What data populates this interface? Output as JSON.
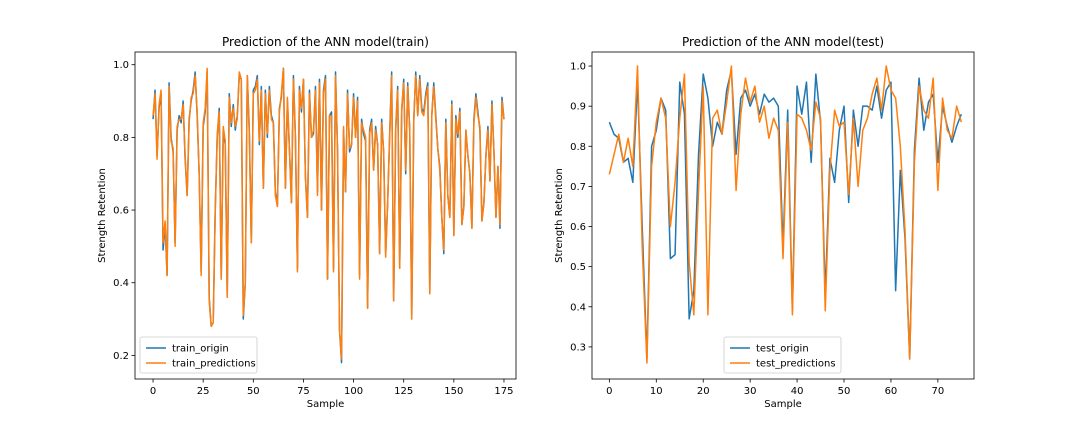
{
  "chart_data": [
    {
      "type": "line",
      "title": "Prediction of the ANN model(train)",
      "xlabel": "Sample",
      "ylabel": "Strength Retention",
      "xlim": [
        -9,
        181
      ],
      "ylim": [
        0.135,
        1.035
      ],
      "xticks": [
        0,
        25,
        50,
        75,
        100,
        125,
        150,
        175
      ],
      "xtick_labels": [
        "0",
        "25",
        "50",
        "75",
        "100",
        "125",
        "150",
        "175"
      ],
      "yticks": [
        0.2,
        0.4,
        0.6,
        0.8,
        1.0
      ],
      "ytick_labels": [
        "0.2",
        "0.4",
        "0.6",
        "0.8",
        "1.0"
      ],
      "legend_position": "lower-left",
      "grid": false,
      "series": [
        {
          "name": "train_origin",
          "color": "#1f77b4",
          "x_start": 0,
          "values": [
            0.85,
            0.93,
            0.75,
            0.88,
            0.92,
            0.49,
            0.56,
            0.42,
            0.95,
            0.8,
            0.76,
            0.51,
            0.82,
            0.86,
            0.84,
            0.9,
            0.74,
            0.64,
            0.85,
            0.9,
            0.93,
            0.98,
            0.86,
            0.7,
            0.43,
            0.83,
            0.87,
            0.98,
            0.36,
            0.28,
            0.29,
            0.6,
            0.8,
            0.88,
            0.41,
            0.82,
            0.78,
            0.36,
            0.92,
            0.83,
            0.89,
            0.82,
            0.86,
            0.97,
            0.96,
            0.3,
            0.4,
            0.97,
            0.82,
            0.51,
            0.93,
            0.94,
            0.97,
            0.78,
            0.94,
            0.66,
            0.93,
            0.8,
            0.94,
            0.86,
            0.84,
            0.65,
            0.61,
            0.88,
            0.91,
            0.99,
            0.66,
            0.9,
            0.77,
            0.62,
            0.97,
            0.8,
            0.44,
            0.94,
            0.87,
            0.96,
            0.69,
            0.58,
            0.93,
            0.8,
            0.81,
            0.94,
            0.65,
            0.96,
            0.6,
            0.93,
            0.97,
            0.41,
            0.86,
            0.87,
            0.44,
            0.98,
            0.76,
            0.27,
            0.18,
            0.82,
            0.65,
            0.93,
            0.76,
            0.78,
            0.92,
            0.8,
            0.91,
            0.42,
            0.85,
            0.81,
            0.79,
            0.33,
            0.82,
            0.85,
            0.71,
            0.83,
            0.78,
            0.48,
            0.85,
            0.76,
            0.48,
            0.62,
            0.81,
            0.98,
            0.35,
            0.82,
            0.94,
            0.44,
            0.87,
            0.96,
            0.7,
            0.95,
            0.82,
            0.3,
            0.84,
            0.98,
            0.86,
            0.97,
            0.88,
            0.87,
            0.92,
            0.95,
            0.37,
            0.86,
            0.95,
            0.86,
            0.77,
            0.72,
            0.58,
            0.48,
            0.85,
            0.64,
            0.58,
            0.9,
            0.53,
            0.86,
            0.8,
            0.88,
            0.56,
            0.61,
            0.82,
            0.75,
            0.7,
            0.55,
            0.85,
            0.92,
            0.87,
            0.82,
            0.57,
            0.62,
            0.75,
            0.83,
            0.68,
            0.9,
            0.76,
            0.58,
            0.72,
            0.55,
            0.91,
            0.85
          ]
        },
        {
          "name": "train_predictions",
          "color": "#ff7f0e",
          "x_start": 0,
          "values": [
            0.86,
            0.92,
            0.74,
            0.89,
            0.93,
            0.51,
            0.57,
            0.42,
            0.94,
            0.79,
            0.77,
            0.5,
            0.83,
            0.85,
            0.85,
            0.89,
            0.75,
            0.64,
            0.84,
            0.91,
            0.92,
            0.97,
            0.87,
            0.7,
            0.42,
            0.84,
            0.88,
            0.99,
            0.35,
            0.28,
            0.29,
            0.59,
            0.81,
            0.87,
            0.41,
            0.83,
            0.79,
            0.36,
            0.91,
            0.84,
            0.88,
            0.83,
            0.85,
            0.98,
            0.96,
            0.31,
            0.4,
            0.97,
            0.81,
            0.51,
            0.92,
            0.93,
            0.96,
            0.79,
            0.93,
            0.66,
            0.92,
            0.81,
            0.93,
            0.85,
            0.84,
            0.64,
            0.61,
            0.87,
            0.92,
            0.99,
            0.66,
            0.91,
            0.77,
            0.62,
            0.96,
            0.8,
            0.43,
            0.93,
            0.88,
            0.96,
            0.69,
            0.58,
            0.92,
            0.8,
            0.82,
            0.93,
            0.64,
            0.95,
            0.6,
            0.92,
            0.96,
            0.41,
            0.86,
            0.86,
            0.43,
            0.97,
            0.77,
            0.27,
            0.19,
            0.83,
            0.65,
            0.92,
            0.77,
            0.78,
            0.91,
            0.8,
            0.9,
            0.41,
            0.84,
            0.82,
            0.8,
            0.33,
            0.81,
            0.84,
            0.71,
            0.82,
            0.78,
            0.48,
            0.84,
            0.76,
            0.47,
            0.62,
            0.8,
            0.97,
            0.35,
            0.83,
            0.93,
            0.44,
            0.88,
            0.95,
            0.71,
            0.94,
            0.82,
            0.3,
            0.85,
            0.97,
            0.86,
            0.96,
            0.87,
            0.86,
            0.91,
            0.94,
            0.37,
            0.86,
            0.94,
            0.85,
            0.77,
            0.71,
            0.58,
            0.49,
            0.84,
            0.64,
            0.58,
            0.89,
            0.53,
            0.85,
            0.81,
            0.87,
            0.56,
            0.61,
            0.82,
            0.75,
            0.7,
            0.55,
            0.84,
            0.91,
            0.86,
            0.83,
            0.57,
            0.62,
            0.75,
            0.82,
            0.68,
            0.89,
            0.76,
            0.58,
            0.72,
            0.56,
            0.9,
            0.85
          ]
        }
      ]
    },
    {
      "type": "line",
      "title": "Prediction of the ANN model(test)",
      "xlabel": "Sample",
      "ylabel": "Strength Retention",
      "xlim": [
        -3.7,
        77.7
      ],
      "ylim": [
        0.22,
        1.035
      ],
      "xticks": [
        0,
        10,
        20,
        30,
        40,
        50,
        60,
        70
      ],
      "xtick_labels": [
        "0",
        "10",
        "20",
        "30",
        "40",
        "50",
        "60",
        "70"
      ],
      "yticks": [
        0.3,
        0.4,
        0.5,
        0.6,
        0.7,
        0.8,
        0.9,
        1.0
      ],
      "ytick_labels": [
        "0.3",
        "0.4",
        "0.5",
        "0.6",
        "0.7",
        "0.8",
        "0.9",
        "1.0"
      ],
      "legend_position": "lower-center",
      "grid": false,
      "series": [
        {
          "name": "test_origin",
          "color": "#1f77b4",
          "x_start": 0,
          "values": [
            0.86,
            0.83,
            0.82,
            0.76,
            0.77,
            0.71,
            0.96,
            0.6,
            0.27,
            0.8,
            0.84,
            0.92,
            0.89,
            0.52,
            0.53,
            0.96,
            0.88,
            0.37,
            0.44,
            0.78,
            0.98,
            0.92,
            0.8,
            0.86,
            0.83,
            0.94,
            0.99,
            0.78,
            0.92,
            0.94,
            0.9,
            0.93,
            0.88,
            0.93,
            0.91,
            0.92,
            0.9,
            0.55,
            0.89,
            0.39,
            0.95,
            0.88,
            0.96,
            0.76,
            0.98,
            0.86,
            0.43,
            0.77,
            0.71,
            0.84,
            0.9,
            0.66,
            0.89,
            0.8,
            0.9,
            0.9,
            0.89,
            0.95,
            0.87,
            0.94,
            0.96,
            0.44,
            0.74,
            0.57,
            0.27,
            0.79,
            0.97,
            0.84,
            0.91,
            0.93,
            0.76,
            0.9,
            0.85,
            0.81,
            0.85,
            0.88
          ]
        },
        {
          "name": "test_predictions",
          "color": "#ff7f0e",
          "x_start": 0,
          "values": [
            0.73,
            0.78,
            0.83,
            0.76,
            0.82,
            0.75,
            1.0,
            0.55,
            0.26,
            0.75,
            0.86,
            0.92,
            0.87,
            0.6,
            0.71,
            0.87,
            0.98,
            0.51,
            0.38,
            0.69,
            0.95,
            0.38,
            0.87,
            0.89,
            0.83,
            0.91,
            1.0,
            0.69,
            0.88,
            0.97,
            0.91,
            0.95,
            0.86,
            0.9,
            0.82,
            0.87,
            0.84,
            0.52,
            0.86,
            0.38,
            0.88,
            0.87,
            0.84,
            0.79,
            0.91,
            0.87,
            0.39,
            0.74,
            0.89,
            0.85,
            0.86,
            0.68,
            0.87,
            0.7,
            0.84,
            0.87,
            0.93,
            0.97,
            0.89,
            1.0,
            0.94,
            0.92,
            0.8,
            0.59,
            0.27,
            0.76,
            0.95,
            0.89,
            0.87,
            0.97,
            0.69,
            0.92,
            0.84,
            0.82,
            0.9,
            0.86
          ]
        }
      ]
    }
  ]
}
